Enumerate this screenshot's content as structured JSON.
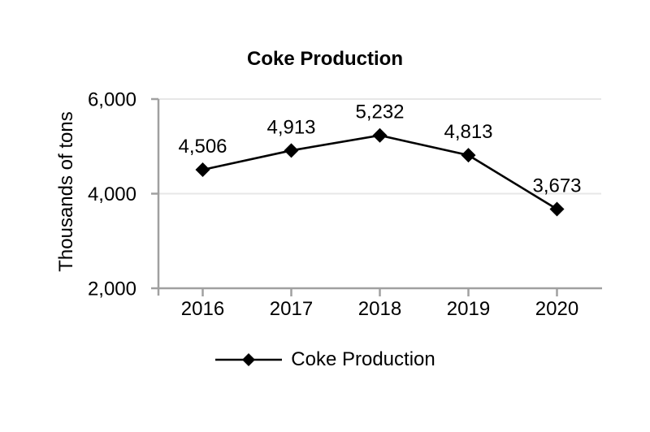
{
  "title": "Coke Production",
  "colors": {
    "text": "#000000",
    "series_line": "#000000",
    "axis": "#a0a0a0",
    "gridline": "#e7e7e7",
    "background": "#ffffff"
  },
  "chart_data": {
    "type": "line",
    "title": "Coke Production",
    "categories": [
      "2016",
      "2017",
      "2018",
      "2019",
      "2020"
    ],
    "series": [
      {
        "name": "Coke Production",
        "values": [
          4506,
          4913,
          5232,
          4813,
          3673
        ],
        "marker": "diamond",
        "color": "#000000"
      }
    ],
    "data_labels": [
      "4,506",
      "4,913",
      "5,232",
      "4,813",
      "3,673"
    ],
    "xlabel": "",
    "ylabel": "Thousands of tons",
    "ylim": [
      2000,
      6000
    ],
    "yticks": [
      2000,
      4000,
      6000
    ],
    "ytick_labels": [
      "2,000",
      "4,000",
      "6,000"
    ],
    "grid": true,
    "legend_position": "bottom",
    "legend_label": "Coke Production"
  }
}
